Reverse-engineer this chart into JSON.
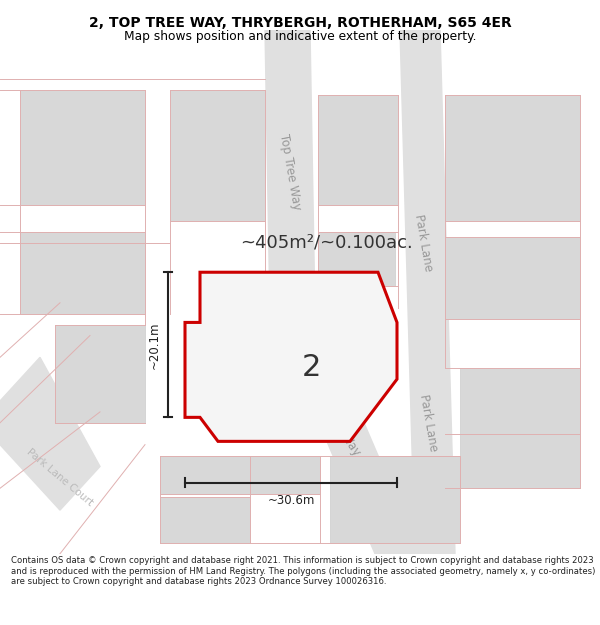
{
  "title_line1": "2, TOP TREE WAY, THRYBERGH, ROTHERHAM, S65 4ER",
  "title_line2": "Map shows position and indicative extent of the property.",
  "footer": "Contains OS data © Crown copyright and database right 2021. This information is subject to Crown copyright and database rights 2023 and is reproduced with the permission of HM Land Registry. The polygons (including the associated geometry, namely x, y co-ordinates) are subject to Crown copyright and database rights 2023 Ordnance Survey 100026316.",
  "area_label": "~405m²/~0.100ac.",
  "plot_number": "2",
  "dim_width": "~30.6m",
  "dim_height": "~20.1m",
  "street1": "Top Tree Way",
  "street2": "Park Lane",
  "street3": "Park Lane Court",
  "plot_edge_color": "#cc0000",
  "plot_fill_color": "#f8f8f8",
  "building_color": "#d8d8d8",
  "road_color": "#e8e8e8",
  "cad_color": "#e0b0b0",
  "dim_color": "#222222",
  "street_color": "#aaaaaa",
  "map_bg": "#f8f8f8"
}
